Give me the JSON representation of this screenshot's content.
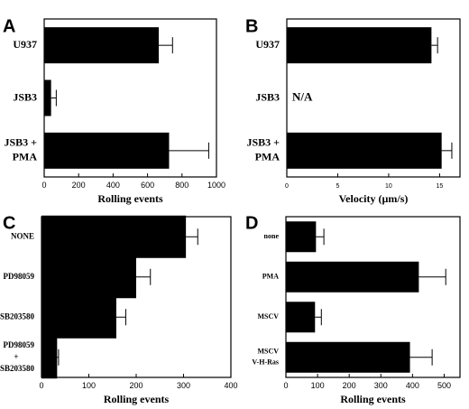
{
  "chart_data": [
    {
      "panel": "A",
      "type": "bar",
      "orientation": "horizontal",
      "categories": [
        [
          "U937"
        ],
        [
          "JSB3"
        ],
        [
          "JSB3 +",
          "PMA"
        ]
      ],
      "values": [
        665,
        40,
        725
      ],
      "errors": [
        80,
        30,
        230
      ],
      "xlabel": "Rolling events",
      "xlim": [
        0,
        1000
      ],
      "xticks": [
        0,
        200,
        400,
        600,
        800,
        1000
      ],
      "annotations": []
    },
    {
      "panel": "B",
      "type": "bar",
      "orientation": "horizontal",
      "categories": [
        [
          "U937"
        ],
        [
          "JSB3"
        ],
        [
          "JSB3 +",
          "PMA"
        ]
      ],
      "values": [
        14.2,
        null,
        15.2
      ],
      "errors": [
        0.6,
        null,
        1.0
      ],
      "xlabel": "Velocity (µm/s)",
      "xlim": [
        0,
        17
      ],
      "xticks": [
        0,
        5,
        10,
        15
      ],
      "annotations": [
        {
          "category_index": 1,
          "text": "N/A"
        }
      ]
    },
    {
      "panel": "C",
      "type": "bar",
      "orientation": "horizontal",
      "categories": [
        [
          "NONE"
        ],
        [
          "PD98059"
        ],
        [
          "SB203580"
        ],
        [
          "PD98059",
          "+",
          "SB203580"
        ]
      ],
      "values": [
        305,
        200,
        158,
        33
      ],
      "errors": [
        25,
        30,
        20,
        3
      ],
      "xlabel": "Rolling events",
      "xlim": [
        0,
        400
      ],
      "xticks": [
        0,
        100,
        200,
        300,
        400
      ],
      "annotations": []
    },
    {
      "panel": "D",
      "type": "bar",
      "orientation": "horizontal",
      "categories": [
        [
          "none"
        ],
        [
          "PMA"
        ],
        [
          "MSCV"
        ],
        [
          "MSCV",
          "V-H-Ras"
        ]
      ],
      "values": [
        95,
        420,
        92,
        392
      ],
      "errors": [
        25,
        85,
        20,
        70
      ],
      "xlabel": "Rolling events",
      "xlim": [
        0,
        550
      ],
      "xticks": [
        0,
        100,
        200,
        300,
        400,
        500
      ],
      "annotations": []
    }
  ]
}
